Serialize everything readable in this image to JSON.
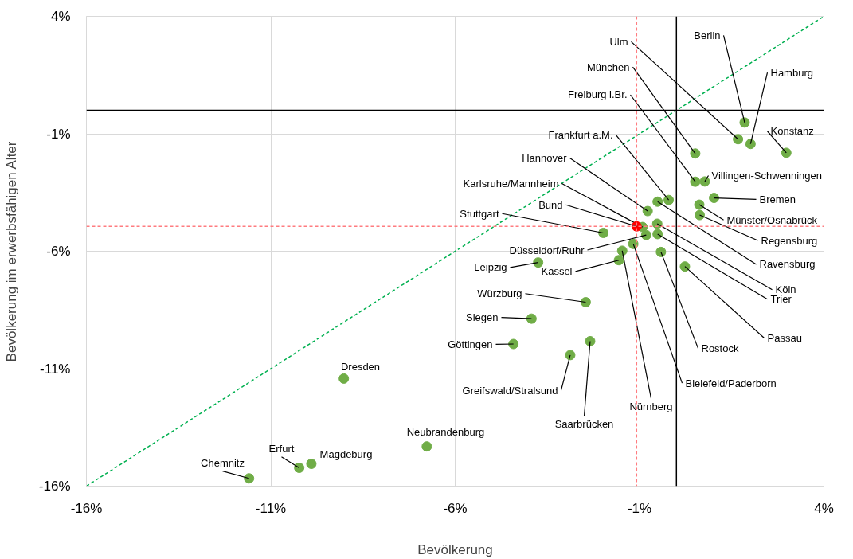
{
  "chart_data": {
    "type": "scatter",
    "xlabel": "Bevölkerung",
    "ylabel": "Bevölkerung im erwerbsfähigen Alter",
    "xlim": [
      -16,
      4
    ],
    "ylim": [
      -16,
      4
    ],
    "xticks": [
      {
        "value": -16,
        "label": "-16%"
      },
      {
        "value": -11,
        "label": "-11%"
      },
      {
        "value": -6,
        "label": "-6%"
      },
      {
        "value": -1,
        "label": "-1%"
      },
      {
        "value": 4,
        "label": "4%"
      }
    ],
    "yticks": [
      {
        "value": -16,
        "label": "-16%"
      },
      {
        "value": -11,
        "label": "-11%"
      },
      {
        "value": -6,
        "label": "-6%"
      },
      {
        "value": -1,
        "label": "-1%"
      },
      {
        "value": 4,
        "label": "4%"
      }
    ],
    "grid": true,
    "marker": "circle",
    "ref_lines": [
      {
        "axis": "x",
        "value": 0,
        "color": "#000000",
        "line_style": "solid"
      },
      {
        "axis": "y",
        "value": 0,
        "color": "#000000",
        "line_style": "solid"
      },
      {
        "axis": "x",
        "value": -1.08,
        "color": "#ff7c80",
        "line_style": "dashed"
      },
      {
        "axis": "y",
        "value": -4.94,
        "color": "#ff7c80",
        "line_style": "dashed"
      }
    ],
    "series": [
      {
        "type": "line",
        "color": "#00b050",
        "line_style": "dashed",
        "marker": "none",
        "x": [
          -16,
          4
        ],
        "values": [
          -16,
          4
        ]
      },
      {
        "name": "Berlin",
        "color": "#70ad47",
        "x": [
          1.85
        ],
        "values": [
          -0.52
        ]
      },
      {
        "name": "Hamburg",
        "color": "#70ad47",
        "x": [
          2.01
        ],
        "values": [
          -1.43
        ]
      },
      {
        "name": "Ulm",
        "color": "#70ad47",
        "x": [
          1.67
        ],
        "values": [
          -1.23
        ]
      },
      {
        "name": "München",
        "color": "#70ad47",
        "x": [
          0.51
        ],
        "values": [
          -1.84
        ]
      },
      {
        "name": "Freiburg i.Br.",
        "color": "#70ad47",
        "x": [
          0.51
        ],
        "values": [
          -3.04
        ]
      },
      {
        "name": "Konstanz",
        "color": "#70ad47",
        "x": [
          2.98
        ],
        "values": [
          -1.81
        ]
      },
      {
        "name": "Villingen-Schwenningen",
        "color": "#70ad47",
        "x": [
          0.77
        ],
        "values": [
          -3.03
        ]
      },
      {
        "name": "Frankfurt a.M.",
        "color": "#70ad47",
        "x": [
          -0.21
        ],
        "values": [
          -3.82
        ]
      },
      {
        "name": "Hannover",
        "color": "#70ad47",
        "x": [
          -0.78
        ],
        "values": [
          -4.29
        ]
      },
      {
        "name": "Karlsruhe/Mannheim",
        "color": "#70ad47",
        "x": [
          -0.92
        ],
        "values": [
          -4.97
        ]
      },
      {
        "name": "Bremen",
        "color": "#70ad47",
        "x": [
          1.02
        ],
        "values": [
          -3.73
        ]
      },
      {
        "name": "Münster/Osnabrück",
        "color": "#70ad47",
        "x": [
          0.62
        ],
        "values": [
          -4.02
        ]
      },
      {
        "name": "Stuttgart",
        "color": "#70ad47",
        "x": [
          -1.98
        ],
        "values": [
          -5.22
        ]
      },
      {
        "name": "Regensburg",
        "color": "#70ad47",
        "x": [
          0.63
        ],
        "values": [
          -4.46
        ]
      },
      {
        "name": "Düsseldorf/Ruhr",
        "color": "#70ad47",
        "x": [
          -0.82
        ],
        "values": [
          -5.31
        ]
      },
      {
        "name": "Ravensburg",
        "color": "#70ad47",
        "x": [
          -0.51
        ],
        "values": [
          -3.89
        ]
      },
      {
        "name": "Leipzig",
        "color": "#70ad47",
        "x": [
          -3.75
        ],
        "values": [
          -6.48
        ]
      },
      {
        "name": "Kassel",
        "color": "#70ad47",
        "x": [
          -1.56
        ],
        "values": [
          -6.38
        ]
      },
      {
        "name": "Köln",
        "color": "#70ad47",
        "x": [
          -0.52
        ],
        "values": [
          -4.83
        ]
      },
      {
        "name": "Trier",
        "color": "#70ad47",
        "x": [
          -0.51
        ],
        "values": [
          -5.27
        ]
      },
      {
        "name": "Würzburg",
        "color": "#70ad47",
        "x": [
          -2.46
        ],
        "values": [
          -8.17
        ]
      },
      {
        "name": "Siegen",
        "color": "#70ad47",
        "x": [
          -3.93
        ],
        "values": [
          -8.87
        ]
      },
      {
        "name": "Passau",
        "color": "#70ad47",
        "x": [
          0.23
        ],
        "values": [
          -6.65
        ]
      },
      {
        "name": "Göttingen",
        "color": "#70ad47",
        "x": [
          -4.42
        ],
        "values": [
          -9.95
        ]
      },
      {
        "name": "Rostock",
        "color": "#70ad47",
        "x": [
          -0.42
        ],
        "values": [
          -6.03
        ]
      },
      {
        "name": "Bielefeld/Paderborn",
        "color": "#70ad47",
        "x": [
          -1.17
        ],
        "values": [
          -5.69
        ]
      },
      {
        "name": "Greifswald/Stralsund",
        "color": "#70ad47",
        "x": [
          -2.88
        ],
        "values": [
          -10.42
        ]
      },
      {
        "name": "Nürnberg",
        "color": "#70ad47",
        "x": [
          -1.47
        ],
        "values": [
          -5.98
        ]
      },
      {
        "name": "Saarbrücken",
        "color": "#70ad47",
        "x": [
          -2.34
        ],
        "values": [
          -9.83
        ]
      },
      {
        "name": "Dresden",
        "color": "#70ad47",
        "x": [
          -9.02
        ],
        "values": [
          -11.42
        ]
      },
      {
        "name": "Neubrandenburg",
        "color": "#70ad47",
        "x": [
          -6.77
        ],
        "values": [
          -14.31
        ]
      },
      {
        "name": "Magdeburg",
        "color": "#70ad47",
        "x": [
          -9.9
        ],
        "values": [
          -15.05
        ]
      },
      {
        "name": "Erfurt",
        "color": "#70ad47",
        "x": [
          -10.23
        ],
        "values": [
          -15.22
        ]
      },
      {
        "name": "Chemnitz",
        "color": "#70ad47",
        "x": [
          -11.59
        ],
        "values": [
          -15.67
        ]
      },
      {
        "name": "Bund",
        "color": "#ff0000",
        "x": [
          -1.08
        ],
        "values": [
          -4.94
        ]
      }
    ]
  }
}
